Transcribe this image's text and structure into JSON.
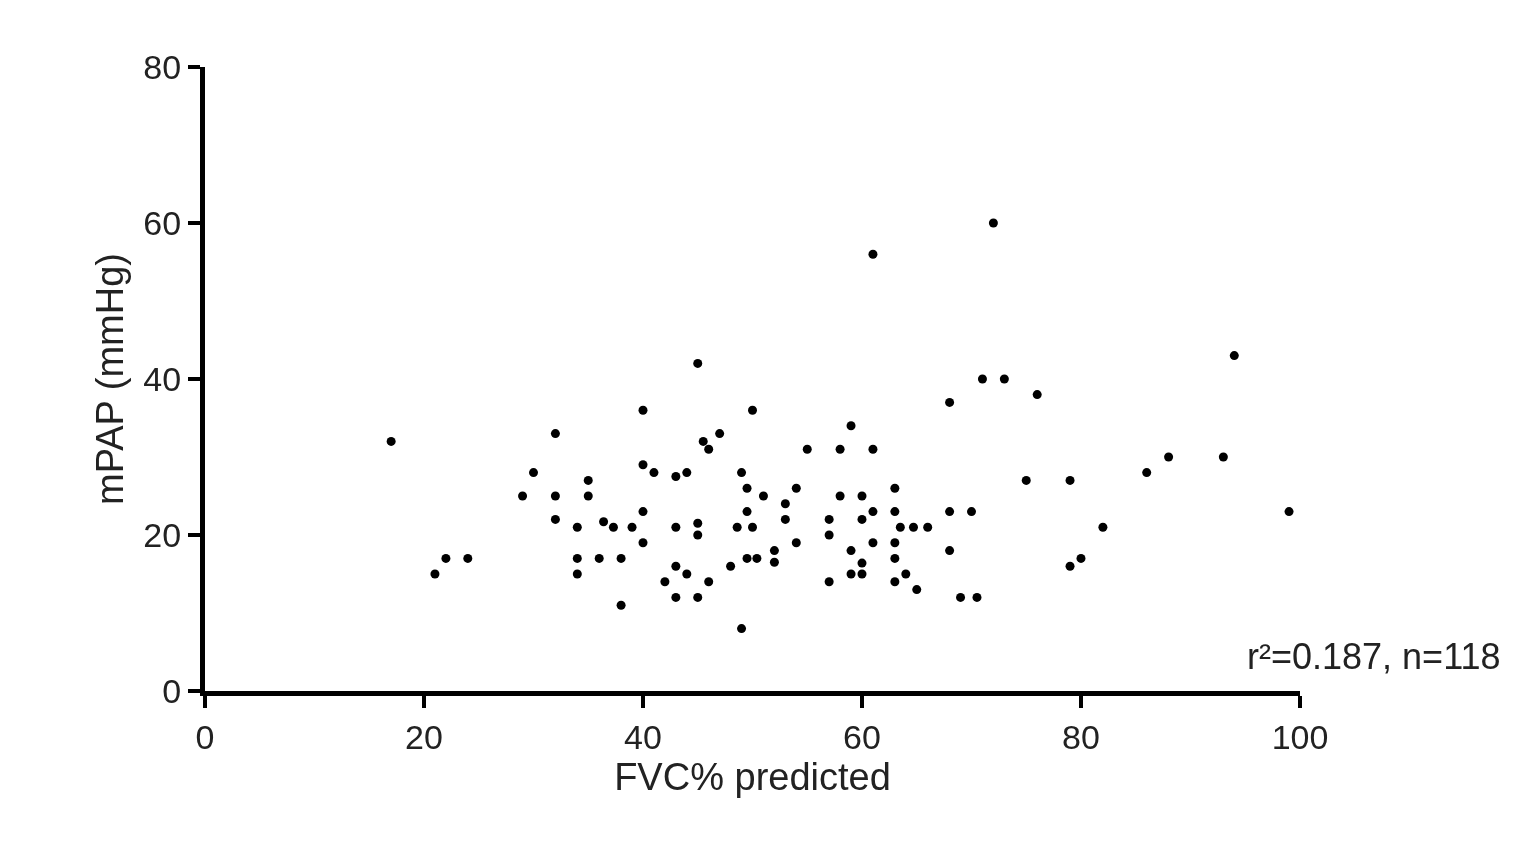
{
  "chart_data": {
    "type": "scatter",
    "xlabel": "FVC% predicted",
    "ylabel": "mPAP (mmHg)",
    "xlim": [
      0,
      100
    ],
    "xticks": [
      0,
      20,
      40,
      60,
      80,
      100
    ],
    "ylim": [
      0,
      80
    ],
    "yticks": [
      0,
      20,
      40,
      60,
      80
    ],
    "marker": "circle",
    "annotations": [
      "r²=0.187, n=118"
    ],
    "series": [
      {
        "color": "#000000",
        "x": [
          17,
          32,
          45,
          40,
          50,
          47,
          45.5,
          46,
          30,
          29,
          32,
          35,
          35,
          40,
          41,
          43,
          44,
          49,
          49.5,
          32,
          34,
          36.4,
          37.3,
          39,
          40,
          40,
          43,
          45,
          45,
          48.6,
          49.5,
          50,
          22,
          24,
          21,
          34,
          34,
          36,
          38,
          38,
          43,
          44,
          42,
          46,
          43,
          45,
          49,
          48,
          49.5,
          50.4,
          59,
          55,
          58,
          61,
          71,
          73,
          68,
          76,
          86,
          75,
          79,
          82,
          79,
          80,
          54,
          51,
          53,
          53,
          58,
          60,
          57,
          57,
          60,
          61,
          63,
          63,
          63.5,
          64.7,
          66,
          68,
          70,
          68,
          52,
          52,
          54,
          61,
          63,
          63,
          59,
          60,
          59,
          60,
          57,
          63,
          64,
          65,
          69,
          70.5,
          61,
          72,
          94,
          88,
          93,
          99
        ],
        "values": [
          32,
          33,
          42,
          36,
          36,
          33,
          32,
          31,
          28,
          25,
          25,
          27,
          25,
          29,
          28,
          27.5,
          28,
          28,
          26,
          22,
          21,
          21.7,
          21,
          21,
          23,
          19,
          21,
          21.5,
          20,
          21,
          23,
          21,
          17,
          17,
          15,
          17,
          15,
          17,
          17,
          11,
          16,
          15,
          14,
          14,
          12,
          12,
          8,
          16,
          17,
          17,
          34,
          31,
          31,
          31,
          40,
          40,
          37,
          38,
          28,
          27,
          27,
          21,
          16,
          17,
          26,
          25,
          24,
          22,
          25,
          25,
          22,
          20,
          22,
          23,
          26,
          23,
          21,
          21,
          21,
          23,
          23,
          18,
          18,
          16.5,
          19,
          19,
          19,
          17,
          18,
          16.4,
          15,
          15,
          14,
          14,
          15,
          13,
          12,
          12,
          56,
          60,
          43,
          30,
          30,
          23
        ]
      }
    ]
  }
}
